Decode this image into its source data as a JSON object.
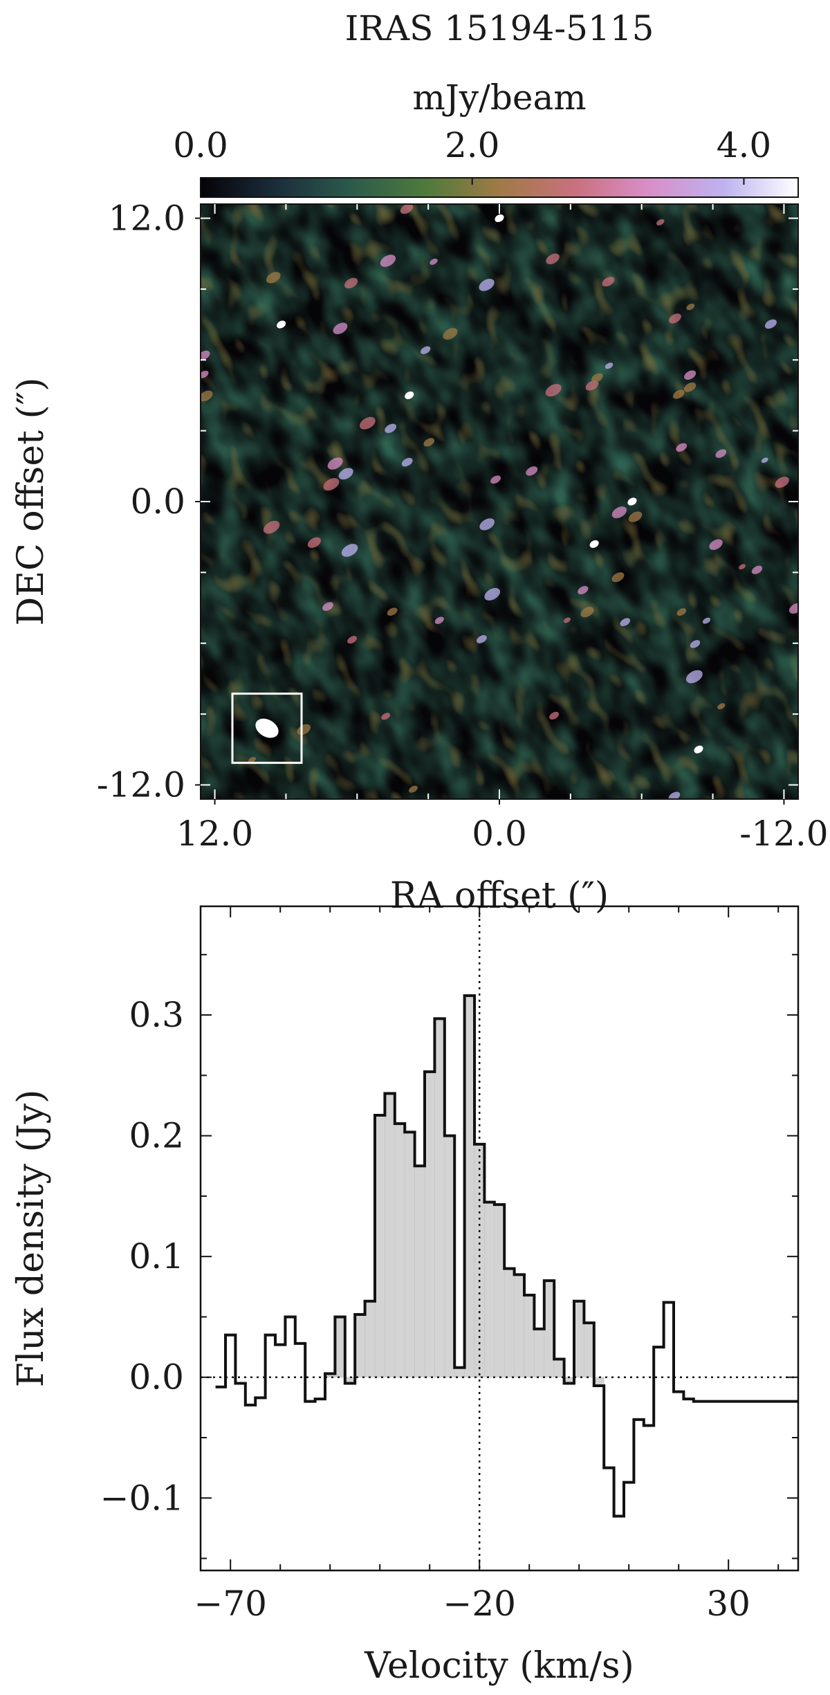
{
  "chart_data": [
    {
      "type": "heatmap",
      "title": "IRAS 15194-5115",
      "colorbar": {
        "label": "mJy/beam",
        "range": [
          0.0,
          4.4
        ],
        "ticks": [
          0.0,
          2.0,
          4.0
        ],
        "tick_labels": [
          "0.0",
          "2.0",
          "4.0"
        ],
        "colormap": [
          "#050308",
          "#1b2d3a",
          "#2b5a4c",
          "#4e7a3c",
          "#a07a45",
          "#c9707e",
          "#d98ec8",
          "#bdb2f0",
          "#ffffff"
        ],
        "placement": "top"
      },
      "xlabel": "RA offset (″)",
      "ylabel": "DEC offset (″)",
      "xlim": [
        12.6,
        -12.6
      ],
      "ylim": [
        -12.6,
        12.6
      ],
      "xticks": [
        12.0,
        0.0,
        -12.0
      ],
      "xtick_labels": [
        "12.0",
        "0.0",
        "-12.0"
      ],
      "yticks": [
        12.0,
        0.0,
        -12.0
      ],
      "ytick_labels": [
        "12.0",
        "0.0",
        "-12.0"
      ],
      "beam": {
        "center": [
          9.8,
          -9.6
        ],
        "major": 0.8,
        "minor": 0.55,
        "angle_deg": 30
      }
    },
    {
      "type": "line",
      "drawstyle": "steps-mid",
      "xlabel": "Velocity (km/s)",
      "ylabel": "Flux density (Jy)",
      "xlim": [
        -76,
        44
      ],
      "ylim": [
        -0.16,
        0.39
      ],
      "xticks": [
        -70,
        -20,
        30
      ],
      "xtick_labels": [
        "−70",
        "−20",
        "30"
      ],
      "yticks": [
        -0.1,
        0.0,
        0.1,
        0.2,
        0.3
      ],
      "ytick_labels": [
        "−0.1",
        "0.0",
        "0.1",
        "0.2",
        "0.3"
      ],
      "reference_lines": {
        "x": -20,
        "y": 0
      },
      "fill_range": [
        -51,
        4
      ],
      "fill_color": "#d3d3d3",
      "step_color": "#111111",
      "x": [
        -72,
        -70,
        -68,
        -66,
        -64,
        -62,
        -60,
        -58,
        -56,
        -54,
        -52,
        -50,
        -48,
        -46,
        -44,
        -42,
        -40,
        -38,
        -36,
        -34,
        -32,
        -30,
        -28,
        -26,
        -24,
        -22,
        -20,
        -18,
        -16,
        -14,
        -12,
        -10,
        -8,
        -6,
        -4,
        -2,
        0,
        2,
        4,
        6,
        8,
        10,
        12,
        14,
        16,
        18,
        20,
        22,
        24,
        26,
        28,
        30,
        32,
        34,
        36,
        38,
        40,
        42,
        44
      ],
      "values": [
        -0.008,
        0.035,
        -0.005,
        -0.023,
        -0.017,
        0.035,
        0.027,
        0.05,
        0.028,
        -0.02,
        -0.018,
        0.003,
        0.05,
        -0.005,
        0.052,
        0.063,
        0.217,
        0.235,
        0.21,
        0.203,
        0.175,
        0.253,
        0.297,
        0.2,
        0.008,
        0.316,
        0.193,
        0.145,
        0.143,
        0.09,
        0.085,
        0.068,
        0.04,
        0.08,
        0.015,
        -0.005,
        0.063,
        0.045,
        -0.007,
        -0.075,
        -0.115,
        -0.087,
        -0.035,
        -0.04,
        0.025,
        0.062,
        -0.012,
        -0.018,
        -0.02,
        -0.02,
        -0.02,
        -0.02,
        -0.02,
        -0.02,
        -0.02,
        -0.02,
        -0.02,
        -0.02,
        -0.02
      ]
    }
  ]
}
